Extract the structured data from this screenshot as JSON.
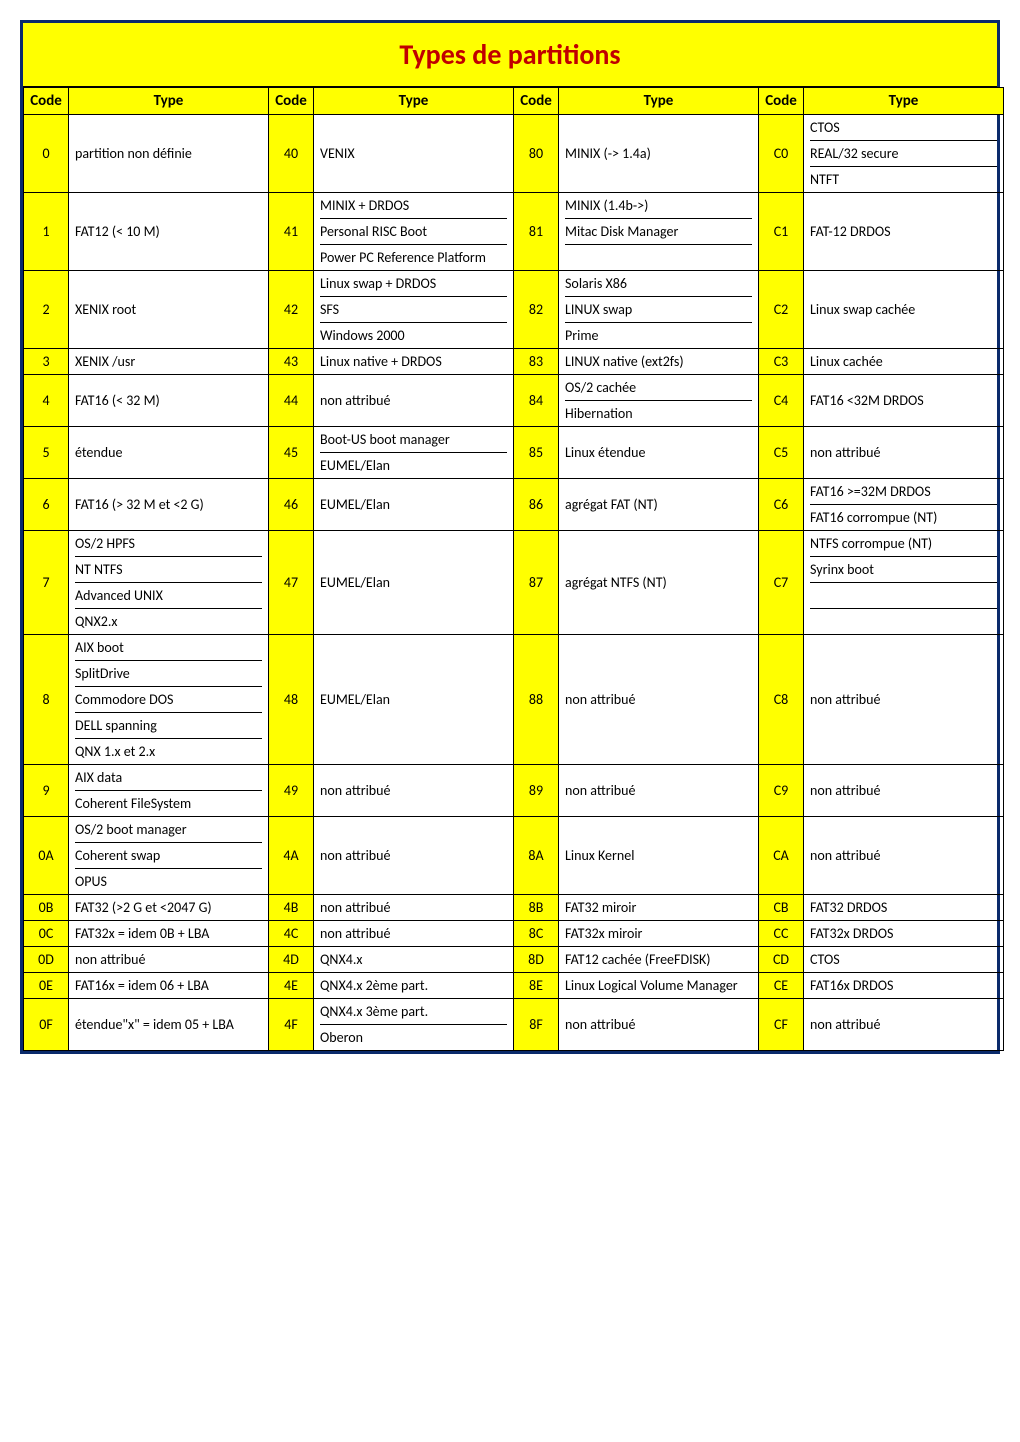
{
  "title": "Types de partitions",
  "headers": {
    "code": "Code",
    "type": "Type"
  },
  "rows": [
    {
      "c1": "0",
      "t1": [
        "partition non définie"
      ],
      "c2": "40",
      "t2": [
        "VENIX"
      ],
      "c3": "80",
      "t3": [
        "MINIX (-> 1.4a)"
      ],
      "c4": "C0",
      "t4": [
        "CTOS",
        "REAL/32 secure",
        "NTFT"
      ]
    },
    {
      "c1": "1",
      "t1": [
        "FAT12 (< 10 M)"
      ],
      "c2": "41",
      "t2": [
        "MINIX + DRDOS",
        "Personal RISC Boot",
        "Power PC Reference Platform"
      ],
      "c3": "81",
      "t3": [
        "MINIX (1.4b->)",
        "Mitac Disk Manager",
        ""
      ],
      "c4": "C1",
      "t4": [
        "FAT-12 DRDOS"
      ]
    },
    {
      "c1": "2",
      "t1": [
        "XENIX root"
      ],
      "c2": "42",
      "t2": [
        "Linux swap + DRDOS",
        "SFS",
        "Windows 2000"
      ],
      "c3": "82",
      "t3": [
        "Solaris X86",
        "LINUX swap",
        "Prime"
      ],
      "c4": "C2",
      "t4": [
        "Linux swap cachée"
      ]
    },
    {
      "c1": "3",
      "t1": [
        "XENIX /usr"
      ],
      "c2": "43",
      "t2": [
        "Linux native +  DRDOS"
      ],
      "c3": "83",
      "t3": [
        "LINUX native (ext2fs)"
      ],
      "c4": "C3",
      "t4": [
        "Linux cachée"
      ]
    },
    {
      "c1": "4",
      "t1": [
        "FAT16 (< 32 M)"
      ],
      "c2": "44",
      "t2": [
        "non attribué"
      ],
      "c3": "84",
      "t3": [
        "OS/2 cachée",
        "Hibernation"
      ],
      "c4": "C4",
      "t4": [
        "FAT16 <32M DRDOS"
      ]
    },
    {
      "c1": "5",
      "t1": [
        "étendue"
      ],
      "c2": "45",
      "t2": [
        "Boot-US boot manager",
        "EUMEL/Elan"
      ],
      "c3": "85",
      "t3": [
        "Linux étendue"
      ],
      "c4": "C5",
      "t4": [
        "non attribué"
      ]
    },
    {
      "c1": "6",
      "t1": [
        "FAT16 (> 32 M et <2 G)"
      ],
      "c2": "46",
      "t2": [
        "EUMEL/Elan"
      ],
      "c3": "86",
      "t3": [
        "agrégat FAT (NT)"
      ],
      "c4": "C6",
      "t4": [
        "FAT16 >=32M DRDOS",
        "FAT16 corrompue (NT)"
      ]
    },
    {
      "c1": "7",
      "t1": [
        "OS/2 HPFS",
        "NT NTFS",
        "Advanced UNIX",
        "QNX2.x"
      ],
      "c2": "47",
      "t2": [
        "EUMEL/Elan"
      ],
      "c3": "87",
      "t3": [
        "agrégat NTFS  (NT)"
      ],
      "c4": "C7",
      "t4": [
        "NTFS corrompue (NT)",
        "Syrinx boot",
        "",
        ""
      ]
    },
    {
      "c1": "8",
      "t1": [
        "AIX boot",
        "SplitDrive",
        "Commodore DOS",
        "DELL spanning",
        "QNX 1.x et 2.x"
      ],
      "c2": "48",
      "t2": [
        "EUMEL/Elan"
      ],
      "c3": "88",
      "t3": [
        "non attribué"
      ],
      "c4": "C8",
      "t4": [
        "non attribué"
      ]
    },
    {
      "c1": "9",
      "t1": [
        "AIX data",
        "Coherent FileSystem"
      ],
      "c2": "49",
      "t2": [
        "non attribué"
      ],
      "c3": "89",
      "t3": [
        "non attribué"
      ],
      "c4": "C9",
      "t4": [
        "non attribué"
      ]
    },
    {
      "c1": "0A",
      "t1": [
        "OS/2 boot manager",
        "Coherent swap",
        "OPUS"
      ],
      "c2": "4A",
      "t2": [
        "non attribué"
      ],
      "c3": "8A",
      "t3": [
        "Linux Kernel"
      ],
      "c4": "CA",
      "t4": [
        "non attribué"
      ]
    },
    {
      "c1": "0B",
      "t1": [
        "FAT32 (>2 G et <2047 G)"
      ],
      "c2": "4B",
      "t2": [
        "non attribué"
      ],
      "c3": "8B",
      "t3": [
        "FAT32 miroir"
      ],
      "c4": "CB",
      "t4": [
        "FAT32 DRDOS"
      ]
    },
    {
      "c1": "0C",
      "t1": [
        "FAT32x = idem 0B + LBA"
      ],
      "c2": "4C",
      "t2": [
        "non attribué"
      ],
      "c3": "8C",
      "t3": [
        "FAT32x miroir"
      ],
      "c4": "CC",
      "t4": [
        "FAT32x DRDOS"
      ]
    },
    {
      "c1": "0D",
      "t1": [
        "non attribué"
      ],
      "c2": "4D",
      "t2": [
        "QNX4.x"
      ],
      "c3": "8D",
      "t3": [
        "FAT12 cachée (FreeFDISK)"
      ],
      "c4": "CD",
      "t4": [
        "CTOS"
      ]
    },
    {
      "c1": "0E",
      "t1": [
        "FAT16x = idem 06 + LBA"
      ],
      "c2": "4E",
      "t2": [
        "QNX4.x 2ème part."
      ],
      "c3": "8E",
      "t3": [
        "Linux Logical Volume Manager"
      ],
      "c4": "CE",
      "t4": [
        "FAT16x DRDOS"
      ]
    },
    {
      "c1": "0F",
      "t1": [
        "étendue\"x\" = idem 05 + LBA"
      ],
      "c2": "4F",
      "t2": [
        "QNX4.x 3ème part.",
        "Oberon"
      ],
      "c3": "8F",
      "t3": [
        "non attribué"
      ],
      "c4": "CF",
      "t4": [
        "non attribué"
      ]
    }
  ]
}
